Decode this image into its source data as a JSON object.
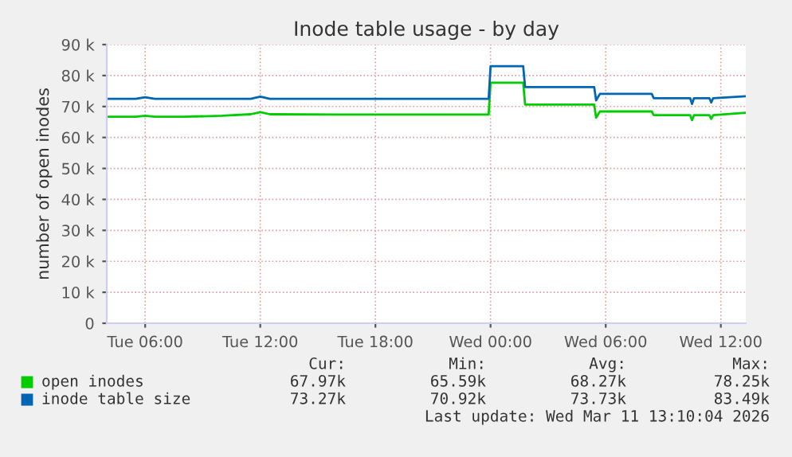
{
  "chart_data": {
    "type": "line",
    "title": "Inode table usage - by day",
    "ylabel": "number of open inodes",
    "xlim": [
      "2026-03-10T04:00",
      "2026-03-11T13:18"
    ],
    "xticks": [
      {
        "value": "2026-03-10T06:00",
        "label": "Tue 06:00"
      },
      {
        "value": "2026-03-10T12:00",
        "label": "Tue 12:00"
      },
      {
        "value": "2026-03-10T18:00",
        "label": "Tue 18:00"
      },
      {
        "value": "2026-03-11T00:00",
        "label": "Wed 00:00"
      },
      {
        "value": "2026-03-11T06:00",
        "label": "Wed 06:00"
      },
      {
        "value": "2026-03-11T12:00",
        "label": "Wed 12:00"
      }
    ],
    "ylim": [
      0,
      90000
    ],
    "yticks": [
      0,
      {
        "value": 10000,
        "label": "10 k"
      },
      {
        "value": 20000,
        "label": "20 k"
      },
      {
        "value": 30000,
        "label": "30 k"
      },
      {
        "value": 40000,
        "label": "40 k"
      },
      {
        "value": 50000,
        "label": "50 k"
      },
      {
        "value": 60000,
        "label": "60 k"
      },
      {
        "value": 70000,
        "label": "70 k"
      },
      {
        "value": 80000,
        "label": "80 k"
      },
      {
        "value": 90000,
        "label": "90 k"
      }
    ],
    "grid": true,
    "legend": "bottom",
    "marker": "none",
    "line_style": "solid",
    "series": [
      {
        "name": "open inodes",
        "color": "#00cc00",
        "x": [
          "2026-03-10T04:00",
          "2026-03-10T05:30",
          "2026-03-10T06:00",
          "2026-03-10T06:30",
          "2026-03-10T08:00",
          "2026-03-10T10:00",
          "2026-03-10T11:30",
          "2026-03-10T12:00",
          "2026-03-10T12:30",
          "2026-03-10T16:00",
          "2026-03-10T20:00",
          "2026-03-10T23:54",
          "2026-03-11T00:00",
          "2026-03-11T01:42",
          "2026-03-11T01:48",
          "2026-03-11T05:24",
          "2026-03-11T05:30",
          "2026-03-11T05:42",
          "2026-03-11T08:24",
          "2026-03-11T08:30",
          "2026-03-11T10:24",
          "2026-03-11T10:30",
          "2026-03-11T10:36",
          "2026-03-11T11:24",
          "2026-03-11T11:30",
          "2026-03-11T11:36",
          "2026-03-11T13:18"
        ],
        "values": [
          66700,
          66700,
          67000,
          66700,
          66700,
          67000,
          67500,
          68200,
          67500,
          67400,
          67400,
          67400,
          77700,
          77700,
          70600,
          70600,
          66400,
          68400,
          68400,
          67200,
          67200,
          65600,
          67200,
          67200,
          66000,
          67200,
          68000
        ]
      },
      {
        "name": "inode table size",
        "color": "#0066b3",
        "x": [
          "2026-03-10T04:00",
          "2026-03-10T05:30",
          "2026-03-10T06:00",
          "2026-03-10T06:30",
          "2026-03-10T08:00",
          "2026-03-10T10:00",
          "2026-03-10T11:30",
          "2026-03-10T12:00",
          "2026-03-10T12:30",
          "2026-03-10T16:00",
          "2026-03-10T20:00",
          "2026-03-10T23:54",
          "2026-03-11T00:00",
          "2026-03-11T01:42",
          "2026-03-11T01:48",
          "2026-03-11T05:24",
          "2026-03-11T05:30",
          "2026-03-11T05:42",
          "2026-03-11T08:24",
          "2026-03-11T08:30",
          "2026-03-11T10:24",
          "2026-03-11T10:30",
          "2026-03-11T10:36",
          "2026-03-11T11:24",
          "2026-03-11T11:30",
          "2026-03-11T11:36",
          "2026-03-11T13:18"
        ],
        "values": [
          72500,
          72500,
          73000,
          72500,
          72500,
          72500,
          72500,
          73200,
          72500,
          72500,
          72500,
          72500,
          83000,
          83000,
          76300,
          76300,
          72000,
          74100,
          74100,
          72700,
          72700,
          70800,
          72700,
          72700,
          71300,
          72700,
          73300
        ]
      }
    ],
    "annotations": [
      "Cur:",
      "Min:",
      "Avg:",
      "Max:",
      "67.97k",
      "65.59k",
      "68.27k",
      "78.25k",
      "73.27k",
      "70.92k",
      "73.73k",
      "83.49k",
      "Last update: Wed Mar 11 13:10:04 2026"
    ]
  }
}
